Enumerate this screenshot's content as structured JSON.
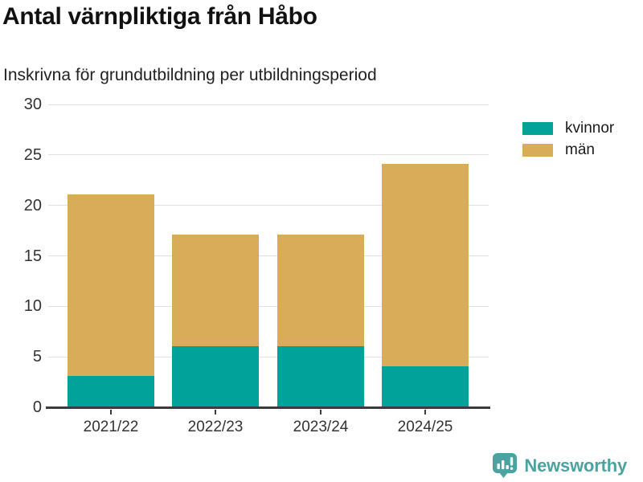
{
  "header": {
    "title": "Antal värnpliktiga från Håbo",
    "subtitle": "Inskrivna för grundutbildning per utbildningsperiod"
  },
  "chart_data": {
    "type": "bar",
    "stacked": true,
    "title": "Antal värnpliktiga från Håbo",
    "subtitle": "Inskrivna för grundutbildning per utbildningsperiod",
    "categories": [
      "2021/22",
      "2022/23",
      "2023/24",
      "2024/25"
    ],
    "series": [
      {
        "name": "kvinnor",
        "color": "#00a29a",
        "values": [
          3,
          6,
          6,
          4
        ]
      },
      {
        "name": "män",
        "color": "#d9ac5a",
        "values": [
          18,
          11,
          11,
          20
        ]
      }
    ],
    "totals": [
      21,
      17,
      17,
      24
    ],
    "xlabel": "",
    "ylabel": "",
    "ylim": [
      0,
      30
    ],
    "yticks": [
      0,
      5,
      10,
      15,
      20,
      25,
      30
    ],
    "grid": true,
    "legend_position": "right"
  },
  "footer": {
    "brand": "Newsworthy"
  },
  "colors": {
    "kvinnor": "#00a29a",
    "man": "#d9ac5a",
    "brand": "#4aa3a0",
    "grid": "#e0e0e0",
    "axis": "#3b3b3b",
    "text": "#333333"
  }
}
